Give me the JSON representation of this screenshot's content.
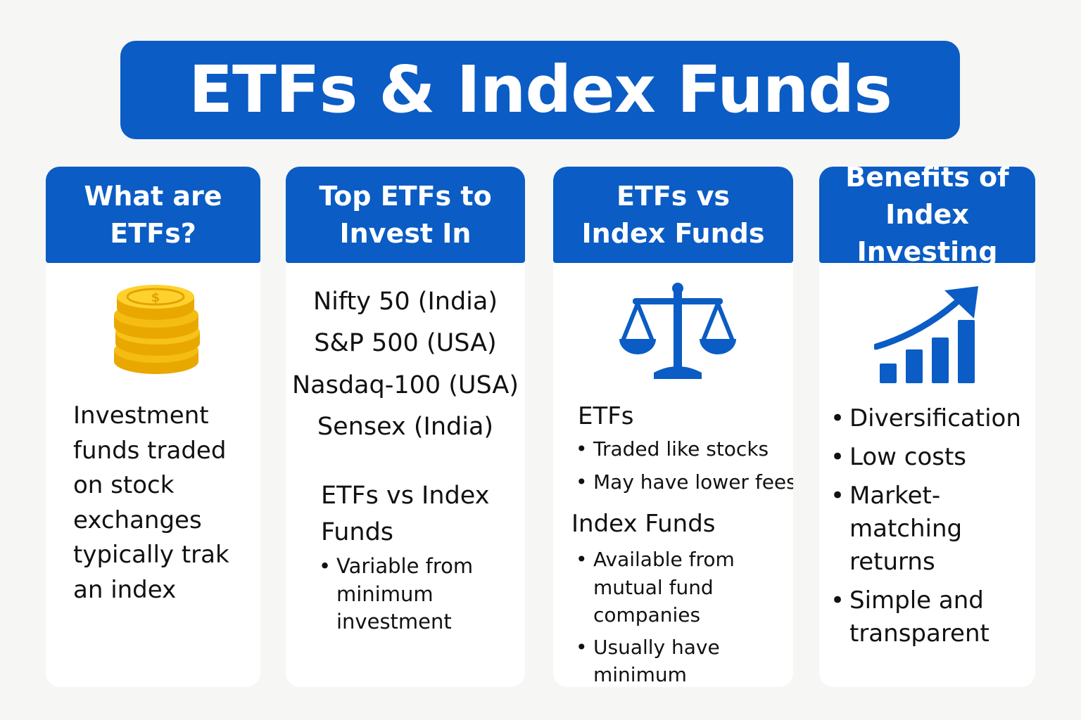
{
  "title": "ETFs & Index Funds",
  "colors": {
    "primary_blue": "#0b5cc4",
    "gold": "#f5b800",
    "background": "#f6f6f4"
  },
  "cards": [
    {
      "header_lines": [
        "What are",
        "ETFs?"
      ],
      "icon": "coin-stack-icon",
      "description": "Investment funds traded on stock exchanges typically trak an index"
    },
    {
      "header_lines": [
        "Top ETFs to",
        "Invest In"
      ],
      "etfs": [
        "Nifty 50 (India)",
        "S&P 500 (USA)",
        "Nasdaq-100 (USA)",
        "Sensex (India)"
      ],
      "subheading_lines": [
        "ETFs vs Index",
        "Funds"
      ],
      "bullets": [
        "Variable from minimum investment"
      ]
    },
    {
      "header_lines": [
        "ETFs vs",
        "Index Funds"
      ],
      "icon": "balance-scale-icon",
      "sections": [
        {
          "heading": "ETFs",
          "bullets": [
            "Traded like stocks",
            "May have lower fees"
          ]
        },
        {
          "heading": "Index Funds",
          "bullets": [
            "Available from mutual fund companies",
            "Usually have minimum investment"
          ]
        }
      ]
    },
    {
      "header_lines": [
        "Benefits of",
        "Index Investing"
      ],
      "icon": "growth-chart-icon",
      "bullets": [
        "Diversification",
        "Low costs",
        "Market-matching returns",
        "Simple and transparent"
      ]
    }
  ]
}
